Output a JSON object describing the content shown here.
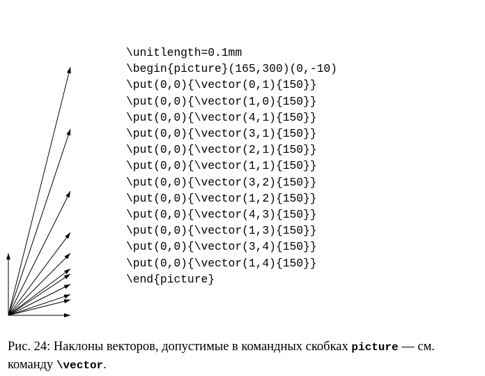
{
  "code_lines": [
    "\\unitlength=0.1mm",
    "\\begin{picture}(165,300)(0,-10)",
    "\\put(0,0){\\vector(0,1){150}}",
    "\\put(0,0){\\vector(1,0){150}}",
    "\\put(0,0){\\vector(4,1){150}}",
    "\\put(0,0){\\vector(3,1){150}}",
    "\\put(0,0){\\vector(2,1){150}}",
    "\\put(0,0){\\vector(1,1){150}}",
    "\\put(0,0){\\vector(3,2){150}}",
    "\\put(0,0){\\vector(1,2){150}}",
    "\\put(0,0){\\vector(4,3){150}}",
    "\\put(0,0){\\vector(1,3){150}}",
    "\\put(0,0){\\vector(3,4){150}}",
    "\\put(0,0){\\vector(1,4){150}}",
    "\\end{picture}"
  ],
  "vectors": [
    [
      0,
      1
    ],
    [
      1,
      0
    ],
    [
      4,
      1
    ],
    [
      3,
      1
    ],
    [
      2,
      1
    ],
    [
      1,
      1
    ],
    [
      3,
      2
    ],
    [
      1,
      2
    ],
    [
      4,
      3
    ],
    [
      1,
      3
    ],
    [
      3,
      4
    ],
    [
      1,
      4
    ]
  ],
  "vector_length": 150,
  "caption": {
    "prefix": "Рис. 24: Наклоны векторов, допустимые в командных скобках ",
    "env": "picture",
    "middle": " — см. команду ",
    "cmd": "\\vector",
    "suffix": "."
  }
}
